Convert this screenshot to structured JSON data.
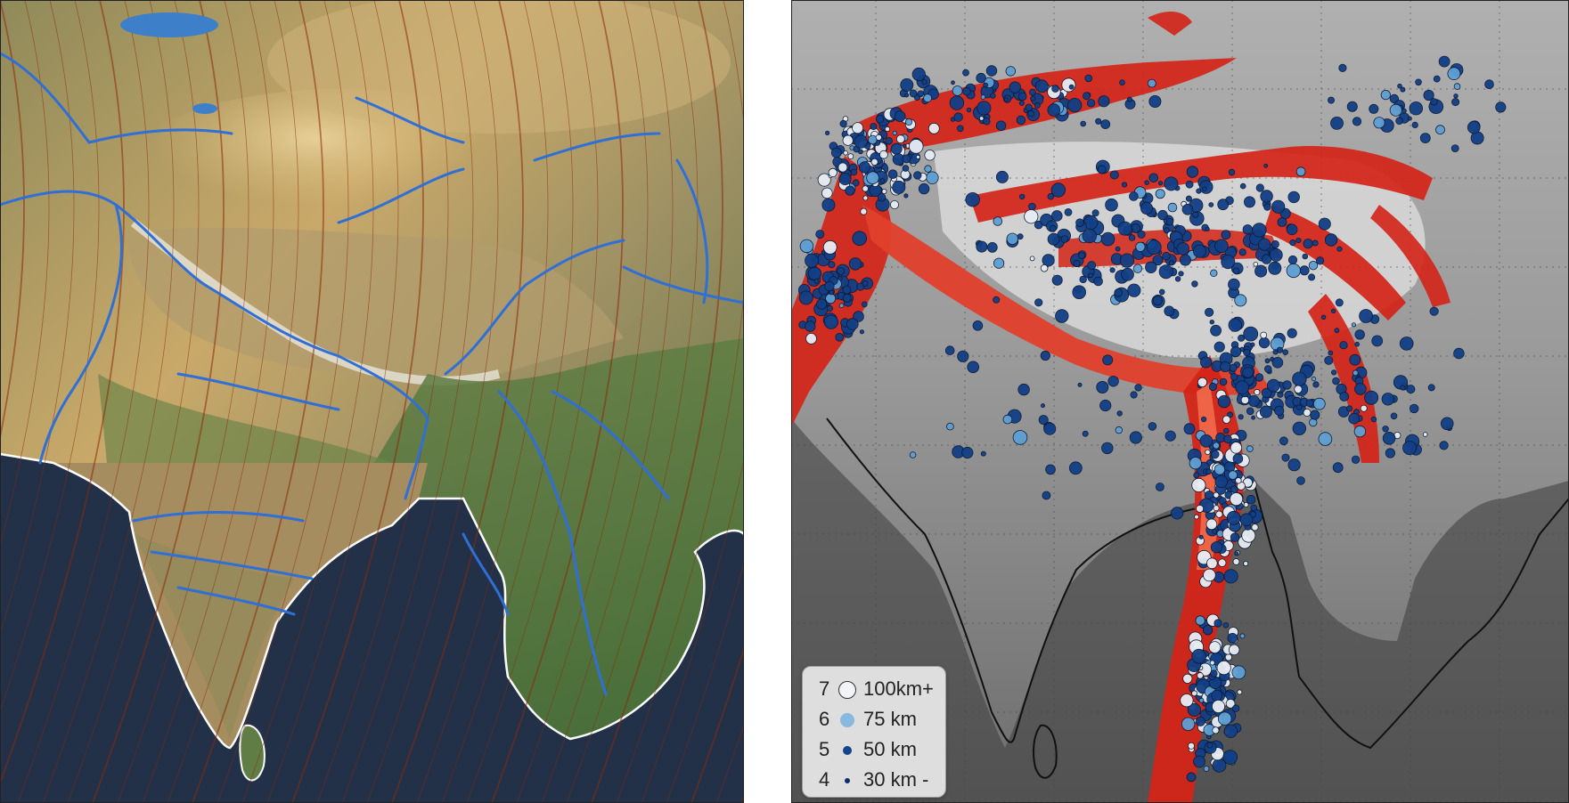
{
  "left_map": {
    "rivers_color": "#2f6fd6",
    "contour_color": "#8a2a0a",
    "coast_color": "#ffffff",
    "ocean_color": "#223046"
  },
  "right_map": {
    "background_color": "#8c8c8c",
    "risk_color": "#d42418",
    "quake_dark": "#123f86",
    "quake_mid": "#5f9fd4",
    "quake_light": "#e8edf4",
    "legend": {
      "rows": [
        {
          "magnitude": "7",
          "depth": "100km+",
          "color": "#f2f4f8"
        },
        {
          "magnitude": "6",
          "depth": "75 km",
          "color": "#88b8df"
        },
        {
          "magnitude": "5",
          "depth": "50 km",
          "color": "#14448c"
        },
        {
          "magnitude": "4",
          "depth": "30 km -",
          "color": "#0d2f66"
        }
      ]
    }
  }
}
